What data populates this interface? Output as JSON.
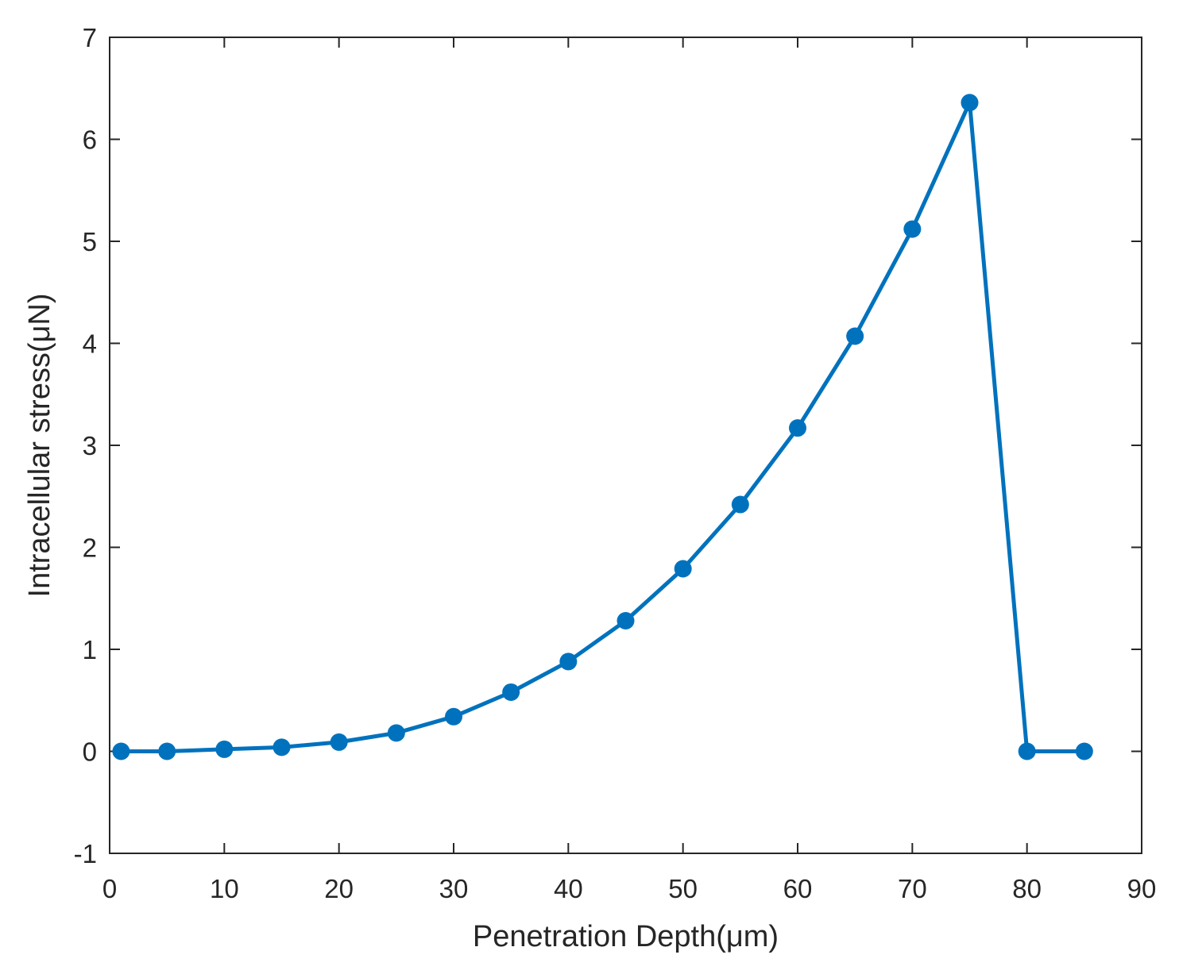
{
  "chart_data": {
    "type": "line",
    "title": "",
    "xlabel": "Penetration Depth(μm)",
    "ylabel": "Intracellular stress(μN)",
    "xlim": [
      0,
      90
    ],
    "ylim": [
      -1,
      7
    ],
    "xticks": [
      "0",
      "10",
      "20",
      "30",
      "40",
      "50",
      "60",
      "70",
      "80",
      "90"
    ],
    "yticks": [
      "-1",
      "0",
      "1",
      "2",
      "3",
      "4",
      "5",
      "6",
      "7"
    ],
    "grid": false,
    "legend": "none",
    "series": [
      {
        "color": "#0072BD",
        "marker": "circle",
        "x": [
          1,
          5,
          10,
          15,
          20,
          25,
          30,
          35,
          40,
          45,
          50,
          55,
          60,
          65,
          70,
          75,
          80,
          85
        ],
        "y": [
          0.0,
          0.0,
          0.02,
          0.04,
          0.09,
          0.18,
          0.34,
          0.58,
          0.88,
          1.28,
          1.79,
          2.42,
          3.17,
          4.07,
          5.12,
          6.36,
          0.0,
          0.0
        ]
      }
    ]
  }
}
